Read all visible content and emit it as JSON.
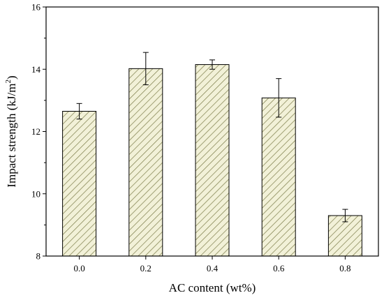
{
  "chart_data": {
    "type": "bar",
    "categories": [
      "0.0",
      "0.2",
      "0.4",
      "0.6",
      "0.8"
    ],
    "values": [
      12.65,
      14.02,
      14.15,
      13.08,
      9.3
    ],
    "errors": [
      0.25,
      0.52,
      0.15,
      0.62,
      0.2
    ],
    "xlabel": "AC content (wt%)",
    "ylabel_main": "Impact strength (kJ/m",
    "ylabel_sup": "2",
    "ylabel_end": ")",
    "ylim": [
      8,
      16
    ],
    "yticks": [
      8,
      10,
      12,
      14,
      16
    ],
    "bar_fill": "#f2f1d8",
    "hatch_color": "#7c7d4a",
    "grid": false,
    "legend": "none"
  }
}
